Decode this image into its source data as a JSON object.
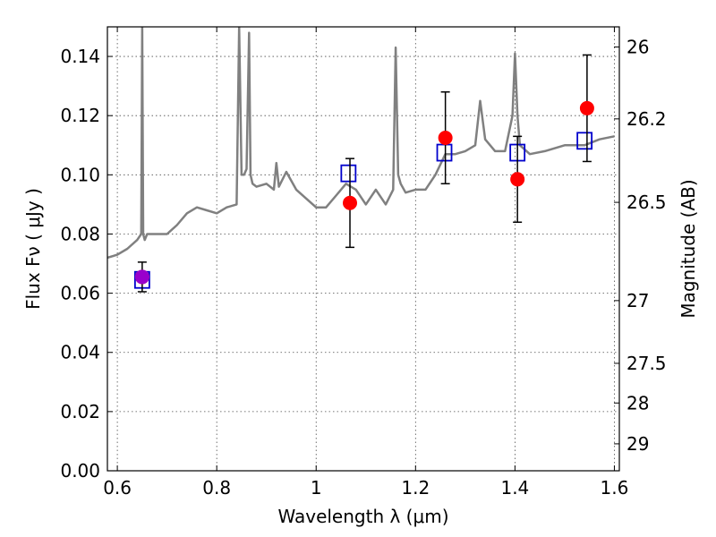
{
  "chart_data": {
    "type": "line",
    "xlabel": "Wavelength  λ (μm)",
    "ylabel": "Flux  Fν  ( μJy )",
    "ylabel_right": "Magnitude (AB)",
    "xlim": [
      0.58,
      1.61
    ],
    "ylim": [
      0.0,
      0.15
    ],
    "grid": true,
    "x_ticks": [
      0.6,
      0.8,
      1.0,
      1.2,
      1.4,
      1.6
    ],
    "x_tick_labels": [
      "0.6",
      "0.8",
      "1",
      "1.2",
      "1.4",
      "1.6"
    ],
    "y_ticks": [
      0.0,
      0.02,
      0.04,
      0.06,
      0.08,
      0.1,
      0.12,
      0.14
    ],
    "y_tick_labels": [
      "0.00",
      "0.02",
      "0.04",
      "0.06",
      "0.08",
      "0.10",
      "0.12",
      "0.14"
    ],
    "right_ticks": [
      {
        "flux": 0.1432,
        "label": "26"
      },
      {
        "flux": 0.1189,
        "label": "26.2"
      },
      {
        "flux": 0.0907,
        "label": "26.5"
      },
      {
        "flux": 0.0575,
        "label": "27"
      },
      {
        "flux": 0.0363,
        "label": "27.5"
      },
      {
        "flux": 0.0229,
        "label": "28"
      },
      {
        "flux": 0.0091,
        "label": "29"
      }
    ],
    "model_spectrum": {
      "color": "#808080",
      "x": [
        0.58,
        0.6,
        0.62,
        0.64,
        0.648,
        0.65,
        0.652,
        0.655,
        0.66,
        0.68,
        0.7,
        0.72,
        0.74,
        0.76,
        0.78,
        0.8,
        0.82,
        0.84,
        0.845,
        0.85,
        0.855,
        0.86,
        0.865,
        0.868,
        0.872,
        0.88,
        0.9,
        0.915,
        0.92,
        0.925,
        0.94,
        0.96,
        0.98,
        1.0,
        1.02,
        1.04,
        1.06,
        1.08,
        1.1,
        1.12,
        1.14,
        1.155,
        1.16,
        1.165,
        1.17,
        1.18,
        1.2,
        1.22,
        1.24,
        1.26,
        1.28,
        1.3,
        1.32,
        1.33,
        1.34,
        1.36,
        1.38,
        1.395,
        1.4,
        1.405,
        1.41,
        1.43,
        1.46,
        1.5,
        1.54,
        1.57,
        1.6
      ],
      "y": [
        0.072,
        0.073,
        0.075,
        0.078,
        0.08,
        0.15,
        0.08,
        0.078,
        0.08,
        0.08,
        0.08,
        0.083,
        0.087,
        0.089,
        0.088,
        0.087,
        0.089,
        0.09,
        0.15,
        0.1,
        0.1,
        0.102,
        0.148,
        0.1,
        0.097,
        0.096,
        0.097,
        0.095,
        0.104,
        0.096,
        0.101,
        0.095,
        0.092,
        0.089,
        0.089,
        0.093,
        0.097,
        0.095,
        0.09,
        0.095,
        0.09,
        0.095,
        0.143,
        0.1,
        0.097,
        0.094,
        0.095,
        0.095,
        0.1,
        0.107,
        0.107,
        0.108,
        0.11,
        0.125,
        0.112,
        0.108,
        0.108,
        0.12,
        0.141,
        0.12,
        0.11,
        0.107,
        0.108,
        0.11,
        0.11,
        0.112,
        0.113
      ]
    },
    "observed": {
      "color": "#ff0000",
      "x": [
        0.65,
        1.068,
        1.26,
        1.405,
        1.545
      ],
      "y": [
        0.0655,
        0.0905,
        0.1125,
        0.0985,
        0.1225
      ],
      "err": [
        0.005,
        0.015,
        0.0155,
        0.0145,
        0.018
      ]
    },
    "model_photometry": {
      "color": "#0000cc",
      "x": [
        0.65,
        1.065,
        1.258,
        1.405,
        1.54
      ],
      "y": [
        0.0645,
        0.1005,
        0.1075,
        0.1075,
        0.1115
      ]
    },
    "special_point": {
      "color": "#9900cc",
      "x": 0.65,
      "y": 0.0655
    }
  }
}
